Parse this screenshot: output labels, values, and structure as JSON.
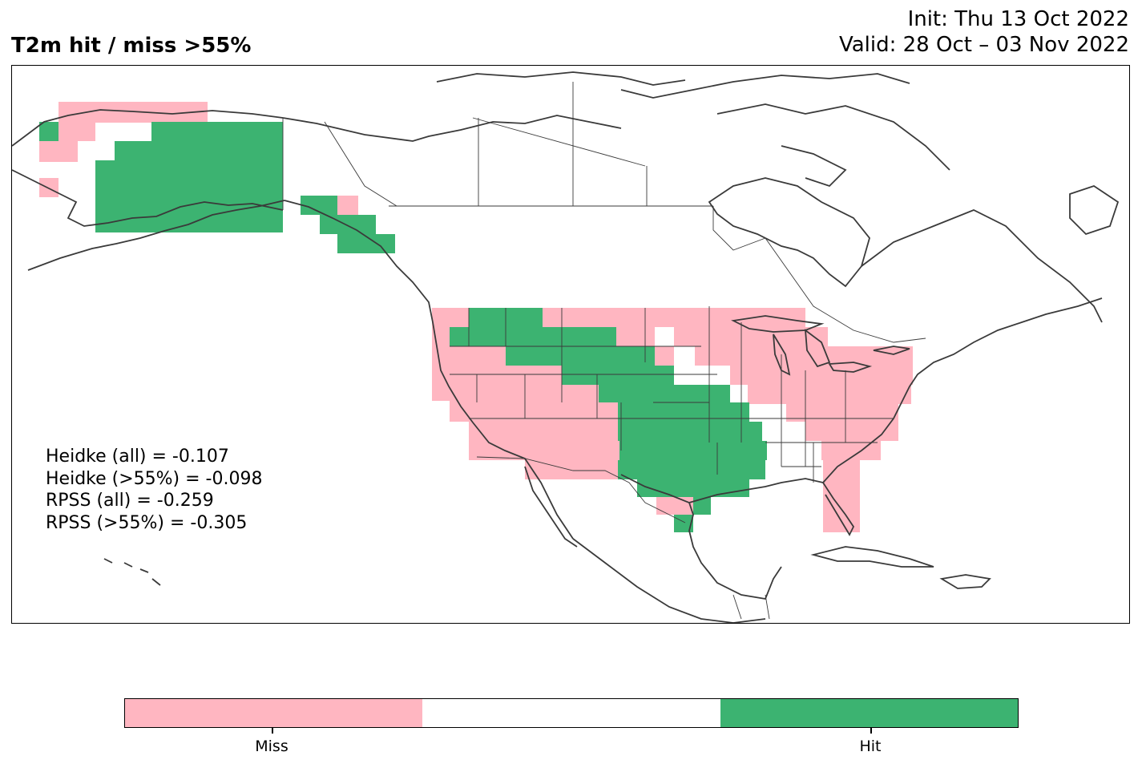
{
  "title": "T2m hit / miss  >55%",
  "init_line": "Init: Thu 13 Oct 2022",
  "valid_line": "Valid: 28 Oct – 03 Nov 2022",
  "scores": [
    "Heidke (all) = -0.107",
    "Heidke (>55%) = -0.098",
    "RPSS (all) = -0.259",
    "RPSS (>55%) = -0.305"
  ],
  "colors": {
    "miss": "#ffb6c1",
    "neutral": "#ffffff",
    "hit": "#3cb371",
    "coast": "#3a3a3a"
  },
  "colorbar": {
    "segments": [
      "miss",
      "neutral",
      "hit"
    ],
    "tick_labels": [
      "Miss",
      "Hit"
    ]
  },
  "map": {
    "region": "North America",
    "categories": [
      "Miss",
      "No signal",
      "Hit"
    ],
    "hit_regions": [
      "Alaska interior",
      "Alaska panhandle",
      "Idaho",
      "Montana (west)",
      "Wyoming",
      "Colorado",
      "Kansas",
      "Oklahoma",
      "Texas (central/east)",
      "Louisiana",
      "Arkansas (south)",
      "Mississippi (west)"
    ],
    "miss_regions": [
      "Alaska (northwest)",
      "Washington",
      "Oregon",
      "California",
      "Nevada",
      "Utah",
      "Arizona",
      "New Mexico",
      "Dakotas",
      "Minnesota",
      "Wisconsin",
      "Michigan",
      "Iowa",
      "Illinois",
      "Indiana",
      "Ohio",
      "Pennsylvania",
      "New York",
      "Kentucky",
      "Tennessee",
      "Carolinas",
      "Georgia",
      "Florida",
      "Texas (south)"
    ]
  }
}
